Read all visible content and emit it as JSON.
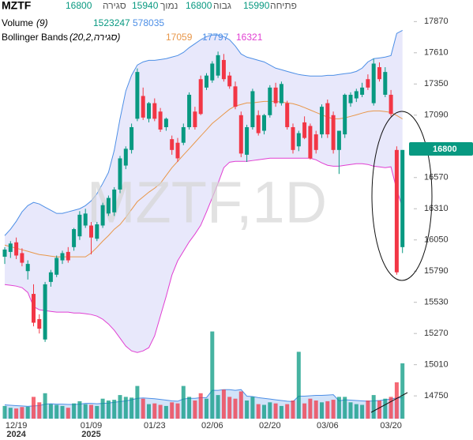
{
  "chart_data": {
    "type": "candlestick",
    "title": "MZTF",
    "watermark": "MZTF,1D",
    "ohlc_labels": {
      "open": "פתיחה",
      "high": "גבוה",
      "low": "נמוך",
      "close": "סגירה"
    },
    "up_color": "#089981",
    "down_color": "#f23645",
    "ylim": [
      14560,
      18050
    ],
    "yticks": [
      17870,
      17610,
      17350,
      17090,
      16570,
      16310,
      16050,
      15790,
      15530,
      15270,
      15010,
      14750
    ],
    "categories": [
      null,
      null,
      "12/19",
      null,
      null,
      null,
      null,
      null,
      null,
      null,
      null,
      null,
      null,
      null,
      null,
      "01/09",
      null,
      null,
      null,
      null,
      null,
      null,
      null,
      null,
      null,
      null,
      "01/23",
      null,
      null,
      null,
      null,
      null,
      null,
      null,
      null,
      null,
      "02/06",
      null,
      null,
      null,
      null,
      null,
      null,
      null,
      null,
      null,
      "02/20",
      null,
      null,
      null,
      null,
      null,
      null,
      null,
      null,
      null,
      "03/06",
      null,
      null,
      null,
      null,
      null,
      null,
      null,
      null,
      null,
      null,
      "03/20",
      null,
      null
    ],
    "year_labels": [
      null,
      null,
      "2024",
      null,
      null,
      null,
      null,
      null,
      null,
      null,
      null,
      null,
      null,
      null,
      null,
      "2025",
      null,
      null,
      null,
      null,
      null,
      null,
      null,
      null,
      null,
      null,
      null,
      null,
      null,
      null,
      null,
      null,
      null,
      null,
      null,
      null,
      null,
      null,
      null,
      null,
      null,
      null,
      null,
      null,
      null,
      null,
      null,
      null,
      null,
      null,
      null,
      null,
      null,
      null,
      null,
      null,
      null,
      null,
      null,
      null,
      null,
      null,
      null,
      null,
      null,
      null,
      null,
      null,
      null,
      null
    ],
    "open": [
      15910,
      15950,
      16030,
      15940,
      15790,
      15600,
      15390,
      15220,
      15700,
      15760,
      15880,
      15950,
      15990,
      16080,
      16170,
      16170,
      16060,
      16170,
      16270,
      16280,
      16470,
      16670,
      16800,
      17060,
      17250,
      17060,
      17190,
      17120,
      16990,
      16890,
      16860,
      16860,
      16990,
      17120,
      17390,
      17320,
      17380,
      17420,
      17550,
      17420,
      17330,
      17090,
      16760,
      16990,
      17090,
      16960,
      17090,
      17320,
      17190,
      17190,
      16990,
      16830,
      17030,
      17000,
      16930,
      16930,
      17190,
      17090,
      16800,
      16930,
      17190,
      17230,
      17260,
      17390,
      17190,
      17490,
      17260,
      17260,
      16800,
      15990
    ],
    "high": [
      15990,
      16040,
      16070,
      15980,
      15880,
      15680,
      15430,
      15700,
      15800,
      15920,
      15960,
      15990,
      16150,
      16290,
      16310,
      16200,
      16200,
      16360,
      16420,
      16490,
      16750,
      16830,
      17020,
      17480,
      17320,
      17200,
      17230,
      17150,
      17070,
      16920,
      16900,
      17020,
      17280,
      17160,
      17420,
      17440,
      17540,
      17620,
      17600,
      17450,
      17370,
      17120,
      17010,
      17310,
      17130,
      17100,
      17340,
      17360,
      17370,
      17210,
      17020,
      16960,
      17080,
      17020,
      16960,
      17180,
      17220,
      17120,
      16960,
      17270,
      17280,
      17310,
      17360,
      17430,
      17560,
      17530,
      17490,
      17300,
      16830,
      16800
    ],
    "low": [
      15850,
      15900,
      15890,
      15830,
      15720,
      15330,
      15270,
      15200,
      15660,
      15740,
      15850,
      15860,
      15960,
      16050,
      16150,
      15930,
      16040,
      16150,
      16250,
      16250,
      16440,
      16640,
      16770,
      17040,
      17050,
      17030,
      17040,
      16950,
      16960,
      16760,
      16700,
      16840,
      16970,
      16970,
      17090,
      17300,
      17360,
      17400,
      17370,
      17310,
      17140,
      16740,
      16700,
      16970,
      16920,
      16930,
      17070,
      17160,
      17170,
      16970,
      16770,
      16790,
      16890,
      16720,
      16770,
      16900,
      16900,
      16770,
      16600,
      16900,
      17160,
      17200,
      17240,
      17300,
      17170,
      17370,
      17240,
      17080,
      15760,
      15940
    ],
    "close": [
      15970,
      16020,
      15920,
      15860,
      15850,
      15360,
      15310,
      15680,
      15780,
      15900,
      15940,
      15880,
      16140,
      16260,
      16270,
      16070,
      16180,
      16340,
      16400,
      16470,
      16730,
      16810,
      16990,
      17450,
      17070,
      17190,
      17060,
      16970,
      17060,
      16800,
      16730,
      16990,
      17260,
      16990,
      17100,
      17420,
      17520,
      17590,
      17390,
      17330,
      17160,
      16770,
      16990,
      17290,
      16940,
      17090,
      17320,
      17190,
      17350,
      16990,
      16800,
      16940,
      16900,
      16730,
      16800,
      17160,
      16930,
      16800,
      16960,
      17260,
      17260,
      17290,
      17320,
      17320,
      17520,
      17390,
      17450,
      17100,
      15780,
      16800
    ],
    "bollinger": {
      "label": "Bollinger Bands",
      "params": "(20,2,סגירה)",
      "fill": "#e8e8fb",
      "basis": {
        "color": "#e8974a",
        "values": [
          16007,
          15994,
          15981,
          15968,
          15955,
          15941,
          15928,
          15922,
          15915,
          15909,
          15909,
          15909,
          15909,
          15909,
          15909,
          15941,
          15988,
          16040,
          16086,
          16139,
          16178,
          16238,
          16304,
          16369,
          16409,
          16448,
          16481,
          16521,
          16587,
          16652,
          16705,
          16758,
          16810,
          16863,
          16916,
          16968,
          17021,
          17060,
          17100,
          17139,
          17166,
          17179,
          17192,
          17192,
          17199,
          17205,
          17205,
          17205,
          17199,
          17192,
          17186,
          17172,
          17153,
          17133,
          17113,
          17093,
          17074,
          17060,
          17060,
          17067,
          17080,
          17093,
          17107,
          17120,
          17126,
          17126,
          17120,
          17113,
          17087,
          17059
        ]
      },
      "upper": {
        "color": "#4d8fe6",
        "values": [
          16086,
          16139,
          16205,
          16284,
          16336,
          16363,
          16350,
          16323,
          16297,
          16271,
          16271,
          16284,
          16297,
          16310,
          16336,
          16376,
          16435,
          16521,
          16613,
          16797,
          17060,
          17291,
          17422,
          17508,
          17534,
          17547,
          17547,
          17554,
          17561,
          17574,
          17587,
          17613,
          17653,
          17686,
          17719,
          17745,
          17758,
          17758,
          17745,
          17719,
          17666,
          17600,
          17574,
          17561,
          17547,
          17534,
          17508,
          17482,
          17469,
          17455,
          17442,
          17429,
          17422,
          17416,
          17416,
          17416,
          17422,
          17422,
          17429,
          17436,
          17442,
          17455,
          17482,
          17534,
          17561,
          17567,
          17574,
          17587,
          17771,
          17797
        ]
      },
      "lower": {
        "color": "#e13fd2",
        "values": [
          15678,
          15672,
          15665,
          15652,
          15612,
          15494,
          15468,
          15461,
          15454,
          15448,
          15448,
          15448,
          15441,
          15441,
          15435,
          15428,
          15415,
          15389,
          15349,
          15297,
          15231,
          15165,
          15125,
          15112,
          15125,
          15152,
          15250,
          15415,
          15579,
          15757,
          15876,
          15955,
          16034,
          16099,
          16172,
          16284,
          16402,
          16521,
          16652,
          16698,
          16705,
          16705,
          16705,
          16712,
          16718,
          16725,
          16731,
          16731,
          16731,
          16731,
          16731,
          16731,
          16731,
          16731,
          16718,
          16692,
          16672,
          16665,
          16665,
          16672,
          16679,
          16685,
          16685,
          16679,
          16665,
          16659,
          16652,
          16659,
          16468,
          16321
        ]
      }
    },
    "volume": {
      "label": "Volume",
      "params": "(9)",
      "vlim": [
        0,
        3000000
      ],
      "values": [
        350000,
        300000,
        280000,
        320000,
        330000,
        600000,
        450000,
        700000,
        400000,
        380000,
        350000,
        300000,
        420000,
        480000,
        400000,
        380000,
        350000,
        550000,
        500000,
        520000,
        650000,
        600000,
        580000,
        900000,
        550000,
        400000,
        420000,
        380000,
        350000,
        450000,
        420000,
        900000,
        600000,
        500000,
        700000,
        550000,
        2400000,
        650000,
        800000,
        600000,
        550000,
        750000,
        500000,
        600000,
        400000,
        380000,
        450000,
        420000,
        350000,
        400000,
        500000,
        1840000,
        420000,
        550000,
        500000,
        450000,
        480000,
        520000,
        600000,
        600000,
        450000,
        400000,
        380000,
        500000,
        650000,
        500000,
        550000,
        600000,
        1000000,
        1523247
      ],
      "ma": {
        "color": "#4d8fe6",
        "values": [
          380000,
          370000,
          360000,
          350000,
          340000,
          350000,
          360000,
          400000,
          410000,
          400000,
          400000,
          390000,
          390000,
          400000,
          420000,
          420000,
          410000,
          420000,
          430000,
          450000,
          470000,
          490000,
          520000,
          560000,
          570000,
          560000,
          550000,
          530000,
          510000,
          490000,
          480000,
          540000,
          560000,
          560000,
          580000,
          580000,
          780000,
          780000,
          800000,
          800000,
          780000,
          800000,
          620000,
          610000,
          580000,
          560000,
          540000,
          520000,
          500000,
          480000,
          470000,
          620000,
          620000,
          630000,
          640000,
          640000,
          650000,
          660000,
          490000,
          520000,
          510000,
          500000,
          490000,
          480000,
          490000,
          500000,
          520000,
          540000,
          570000,
          578035
        ]
      }
    }
  }
}
